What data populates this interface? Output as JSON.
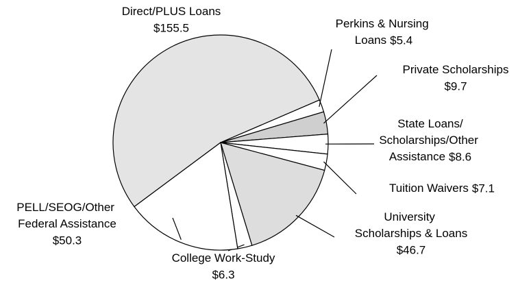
{
  "chart_data": {
    "type": "pie",
    "categories": [
      "Direct/PLUS Loans",
      "Perkins & Nursing Loans",
      "Private Scholarships",
      "State Loans/Scholarships/Other Assistance",
      "Tuition Waivers",
      "University Scholarships & Loans",
      "College Work-Study",
      "PELL/SEOG/Other Federal Assistance"
    ],
    "values": [
      155.5,
      5.4,
      9.7,
      8.6,
      7.1,
      46.7,
      6.3,
      50.3
    ],
    "value_labels": [
      "$155.5",
      "$5.4",
      "$9.7",
      "$8.6",
      "$7.1",
      "$46.7",
      "$6.3",
      "$50.3"
    ],
    "colors": [
      "#e4e4e4",
      "#ffffff",
      "#cfcfcf",
      "#ffffff",
      "#ffffff",
      "#dddddd",
      "#ffffff",
      "#ffffff"
    ]
  }
}
